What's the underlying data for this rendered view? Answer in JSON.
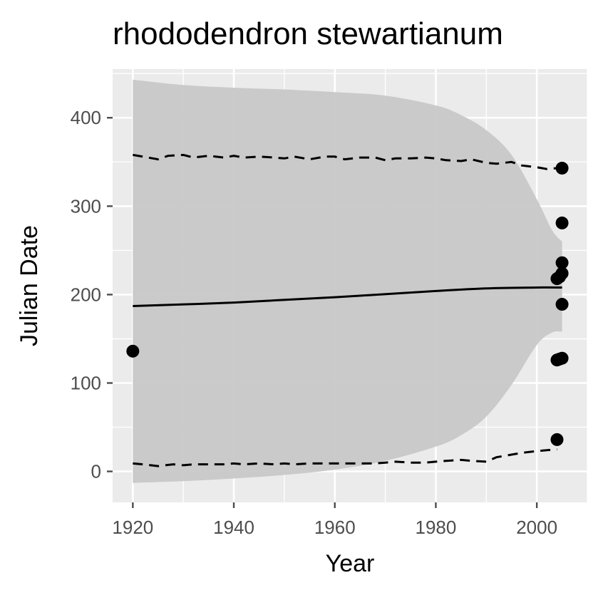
{
  "chart_data": {
    "type": "scatter",
    "title": "rhododendron stewartianum",
    "xlabel": "Year",
    "ylabel": "Julian Date",
    "xlim": [
      1916,
      2010
    ],
    "ylim": [
      -35,
      455
    ],
    "x_ticks": [
      1920,
      1940,
      1960,
      1980,
      2000
    ],
    "y_ticks": [
      0,
      100,
      200,
      300,
      400
    ],
    "grid": true,
    "legend": "none",
    "colors": {
      "panel_bg": "#ebebeb",
      "grid": "#ffffff",
      "ribbon": "#c8c8c8",
      "line": "#000000",
      "points": "#000000",
      "tick": "#4d4d4d"
    },
    "ribbon": {
      "x": [
        1920,
        1930,
        1940,
        1950,
        1960,
        1970,
        1980,
        1985,
        1990,
        1995,
        2000,
        2003,
        2005
      ],
      "upper": [
        443,
        437,
        434,
        432,
        429,
        425,
        414,
        403,
        386,
        358,
        308,
        273,
        260
      ],
      "lower": [
        -13,
        -11,
        -8,
        -4,
        2,
        12,
        28,
        41,
        62,
        98,
        143,
        157,
        158
      ]
    },
    "fit_line": {
      "x": [
        1920,
        1940,
        1960,
        1980,
        1990,
        2000,
        2005
      ],
      "y": [
        187,
        191,
        197,
        204,
        207,
        208,
        208
      ]
    },
    "upper_dashed": {
      "x": [
        1920,
        1922,
        1925,
        1927,
        1930,
        1932,
        1935,
        1938,
        1940,
        1942,
        1945,
        1948,
        1950,
        1952,
        1955,
        1958,
        1960,
        1962,
        1965,
        1968,
        1970,
        1972,
        1975,
        1978,
        1980,
        1982,
        1985,
        1987,
        1990,
        1992,
        1995,
        1997,
        2000,
        2002,
        2004
      ],
      "y": [
        358,
        356,
        353,
        357,
        358,
        355,
        357,
        355,
        357,
        355,
        356,
        355,
        354,
        356,
        353,
        356,
        356,
        353,
        355,
        355,
        352,
        354,
        354,
        355,
        354,
        352,
        351,
        353,
        349,
        348,
        350,
        346,
        344,
        342,
        343
      ]
    },
    "lower_dashed": {
      "x": [
        1920,
        1922,
        1925,
        1928,
        1930,
        1932,
        1935,
        1938,
        1940,
        1942,
        1945,
        1948,
        1950,
        1952,
        1955,
        1958,
        1960,
        1962,
        1965,
        1968,
        1970,
        1972,
        1975,
        1978,
        1980,
        1982,
        1985,
        1987,
        1990,
        1992,
        1995,
        1997,
        2000,
        2002,
        2004
      ],
      "y": [
        9,
        8,
        6,
        8,
        7,
        8,
        8,
        8,
        9,
        8,
        9,
        8,
        9,
        8,
        9,
        9,
        9,
        9,
        9,
        9,
        10,
        11,
        10,
        10,
        11,
        12,
        13,
        12,
        11,
        16,
        19,
        21,
        23,
        24,
        25
      ]
    },
    "points": {
      "x": [
        1920,
        2004,
        2004.5,
        2005,
        2005,
        2005,
        2005,
        2005,
        2004,
        2004.5,
        2005,
        2004
      ],
      "y": [
        136,
        218,
        220,
        224,
        236,
        343,
        281,
        189,
        126,
        127,
        128,
        36
      ]
    }
  }
}
